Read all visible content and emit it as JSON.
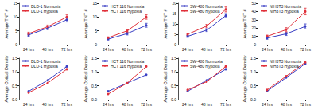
{
  "chart_data": [
    {
      "type": "line",
      "ylabel": "Average TNT #",
      "categories": [
        "24 hrs",
        "48 hrs",
        "72 hrs"
      ],
      "ylim": [
        0,
        15
      ],
      "yticks": [
        0,
        5,
        10,
        15
      ],
      "legend": "upper left",
      "marker": "circle",
      "line_style": "solid",
      "series": [
        {
          "name": "DLD-1 Normoxia",
          "color": "#3a3fc4",
          "values": [
            3.5,
            6,
            9
          ],
          "errors": [
            0.5,
            0.6,
            0.8
          ]
        },
        {
          "name": "DLD-1 Hypoxia",
          "color": "#e0303a",
          "values": [
            4,
            6.5,
            10
          ],
          "errors": [
            0.5,
            0.6,
            0.9
          ]
        }
      ]
    },
    {
      "type": "line",
      "ylabel": "Average TNT #",
      "categories": [
        "24 hrs",
        "48 hrs",
        "72 hrs"
      ],
      "ylim": [
        0,
        15
      ],
      "yticks": [
        0,
        5,
        10,
        15
      ],
      "legend": "upper left",
      "marker": "circle",
      "line_style": "solid",
      "series": [
        {
          "name": "HCT 116 Normoxia",
          "color": "#3a3fc4",
          "values": [
            2,
            4,
            7
          ],
          "errors": [
            0.3,
            0.5,
            0.7
          ]
        },
        {
          "name": "HCT 116 Hypoxia",
          "color": "#e0303a",
          "values": [
            2.5,
            5,
            10
          ],
          "errors": [
            0.3,
            0.5,
            0.8
          ]
        }
      ]
    },
    {
      "type": "line",
      "ylabel": "Average TNT #",
      "categories": [
        "24 hrs",
        "48 hrs",
        "72 hrs"
      ],
      "ylim": [
        0,
        20
      ],
      "yticks": [
        0,
        5,
        10,
        15,
        20
      ],
      "legend": "upper left",
      "marker": "circle",
      "line_style": "solid",
      "series": [
        {
          "name": "SW-480 Normoxia",
          "color": "#3a3fc4",
          "values": [
            4,
            7,
            14
          ],
          "errors": [
            0.5,
            0.7,
            1
          ]
        },
        {
          "name": "SW-480 Hypoxia",
          "color": "#e0303a",
          "values": [
            5,
            9,
            17
          ],
          "errors": [
            0.5,
            0.8,
            1.2
          ]
        }
      ]
    },
    {
      "type": "line",
      "ylabel": "Average TNT #",
      "categories": [
        "24 hrs",
        "48 hrs",
        "72 hrs"
      ],
      "ylim": [
        0,
        50
      ],
      "yticks": [
        0,
        10,
        20,
        30,
        40,
        50
      ],
      "legend": "upper left",
      "marker": "circle",
      "line_style": "solid",
      "series": [
        {
          "name": "NIH3T3 Normoxia",
          "color": "#3a3fc4",
          "values": [
            8,
            13,
            22
          ],
          "errors": [
            1.5,
            2,
            3
          ]
        },
        {
          "name": "NIH3T3 Hypoxia",
          "color": "#e0303a",
          "values": [
            10,
            18,
            40
          ],
          "errors": [
            1.5,
            2.5,
            4
          ]
        }
      ]
    },
    {
      "type": "line",
      "ylabel": "Average Optical Density",
      "categories": [
        "24 hrs",
        "48 hrs",
        "72 hrs"
      ],
      "ylim": [
        0,
        1.5
      ],
      "yticks": [
        {
          "value": 0,
          "label": "0.0"
        },
        {
          "value": 0.5,
          "label": "0.5"
        },
        {
          "value": 1,
          "label": "1.0"
        },
        {
          "value": 1.5,
          "label": "1.5"
        }
      ],
      "legend": "upper left",
      "marker": "circle",
      "line_style": "solid",
      "series": [
        {
          "name": "DLD-1 Normoxia",
          "color": "#3a3fc4",
          "values": [
            0.3,
            0.7,
            1.2
          ]
        },
        {
          "name": "DLD-1 Hypoxia",
          "color": "#e0303a",
          "values": [
            0.25,
            0.6,
            1.1
          ]
        }
      ]
    },
    {
      "type": "line",
      "ylabel": "Average Optical Density",
      "categories": [
        "24 hrs",
        "48 hrs",
        "72 hrs"
      ],
      "ylim": [
        0,
        1.5
      ],
      "yticks": [
        {
          "value": 0,
          "label": "0.0"
        },
        {
          "value": 0.5,
          "label": "0.5"
        },
        {
          "value": 1,
          "label": "1.0"
        },
        {
          "value": 1.5,
          "label": "1.5"
        }
      ],
      "legend": "upper left",
      "marker": "circle",
      "line_style": "solid",
      "series": [
        {
          "name": "HCT 116 Normoxia",
          "color": "#3a3fc4",
          "values": [
            0.3,
            0.6,
            0.9
          ]
        },
        {
          "name": "HCT 116 Hypoxia",
          "color": "#e0303a",
          "values": [
            0.2,
            0.6,
            1.2
          ]
        }
      ]
    },
    {
      "type": "line",
      "ylabel": "Average Optical Density",
      "categories": [
        "24 hrs",
        "48 hrs",
        "72 hrs"
      ],
      "ylim": [
        0,
        1.5
      ],
      "yticks": [
        {
          "value": 0,
          "label": "0.0"
        },
        {
          "value": 0.5,
          "label": "0.5"
        },
        {
          "value": 1,
          "label": "1.0"
        },
        {
          "value": 1.5,
          "label": "1.5"
        }
      ],
      "legend": "upper left",
      "marker": "circle",
      "line_style": "solid",
      "series": [
        {
          "name": "SW-480 Normoxia",
          "color": "#3a3fc4",
          "values": [
            0.3,
            0.7,
            1.1
          ]
        },
        {
          "name": "SW-480 Hypoxia",
          "color": "#e0303a",
          "values": [
            0.35,
            0.65,
            1.2
          ]
        }
      ]
    },
    {
      "type": "line",
      "ylabel": "Average Optical Density",
      "categories": [
        "24 hrs",
        "48 hrs",
        "72 hrs"
      ],
      "ylim": [
        0,
        1.5
      ],
      "yticks": [
        {
          "value": 0,
          "label": "0.0"
        },
        {
          "value": 0.5,
          "label": "0.5"
        },
        {
          "value": 1,
          "label": "1.0"
        },
        {
          "value": 1.5,
          "label": "1.5"
        }
      ],
      "legend": "upper left",
      "marker": "circle",
      "line_style": "solid",
      "series": [
        {
          "name": "NIH3T3 Normoxia",
          "color": "#3a3fc4",
          "values": [
            0.3,
            0.8,
            1.3
          ]
        },
        {
          "name": "NIH3T3 Hypoxia",
          "color": "#e0303a",
          "values": [
            0.35,
            0.85,
            1.35
          ]
        }
      ]
    }
  ]
}
